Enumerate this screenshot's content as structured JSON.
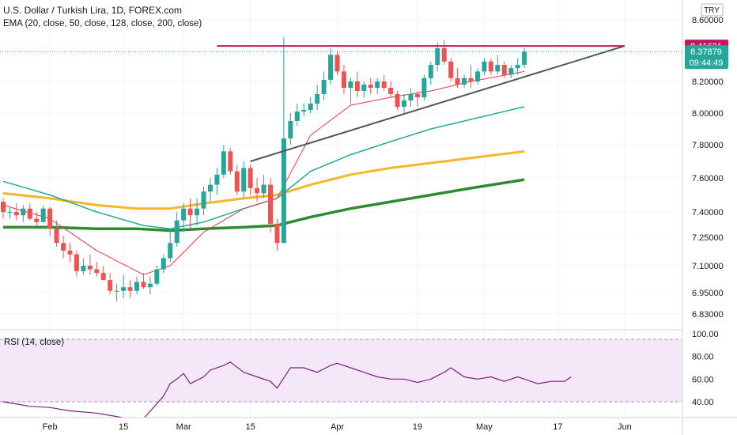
{
  "header": {
    "title": "U.S. Dollar / Turkish Lira, 1D, FOREX.com",
    "indicator": "EMA (20, close, 50, close, 128, close, 200, close)",
    "currency": "TRY"
  },
  "price_badges": {
    "resistance": "8.41621",
    "last": "8.37879",
    "countdown": "09:44:49"
  },
  "rsi_label": "RSI (14, close)",
  "colors": {
    "up": "#26a69a",
    "down": "#ef5350",
    "ema20": "#f23645",
    "ema50": "#22ab94",
    "ema128": "#f7b52c",
    "ema200": "#2e8b2e",
    "trend": "#555555",
    "resistance": "#c2185b",
    "rsi": "#7e1e7e",
    "rsi_band": "#f3e7f8",
    "last_badge": "#26a69a",
    "res_badge": "#c2185b"
  },
  "chart_data": [
    {
      "type": "candlestick",
      "title": "U.S. Dollar / Turkish Lira, 1D, FOREX.com",
      "y_ticks": [
        "8.60000",
        "8.40000",
        "8.20000",
        "8.00000",
        "7.80000",
        "7.60000",
        "7.40000",
        "7.25000",
        "7.10000",
        "6.95000",
        "6.83000"
      ],
      "y_tick_values": [
        8.6,
        8.4,
        8.2,
        8.0,
        7.8,
        7.6,
        7.4,
        7.25,
        7.1,
        6.95,
        6.83
      ],
      "x_ticks": [
        {
          "label": "Feb",
          "idx": 7
        },
        {
          "label": "15",
          "idx": 18
        },
        {
          "label": "Mar",
          "idx": 27
        },
        {
          "label": "15",
          "idx": 37
        },
        {
          "label": "Apr",
          "idx": 50
        },
        {
          "label": "19",
          "idx": 62
        },
        {
          "label": "May",
          "idx": 72
        },
        {
          "label": "17",
          "idx": 83
        },
        {
          "label": "Jun",
          "idx": 93
        }
      ],
      "candles": [
        [
          7.46,
          7.48,
          7.36,
          7.4
        ],
        [
          7.4,
          7.43,
          7.36,
          7.4
        ],
        [
          7.4,
          7.45,
          7.35,
          7.38
        ],
        [
          7.38,
          7.44,
          7.34,
          7.42
        ],
        [
          7.42,
          7.45,
          7.35,
          7.36
        ],
        [
          7.36,
          7.4,
          7.32,
          7.34
        ],
        [
          7.34,
          7.44,
          7.34,
          7.42
        ],
        [
          7.42,
          7.43,
          7.26,
          7.3
        ],
        [
          7.3,
          7.35,
          7.2,
          7.22
        ],
        [
          7.22,
          7.26,
          7.14,
          7.18
        ],
        [
          7.18,
          7.22,
          7.12,
          7.16
        ],
        [
          7.16,
          7.18,
          7.04,
          7.07
        ],
        [
          7.07,
          7.14,
          7.05,
          7.1
        ],
        [
          7.1,
          7.16,
          7.05,
          7.08
        ],
        [
          7.08,
          7.12,
          7.04,
          7.06
        ],
        [
          7.06,
          7.1,
          7.02,
          7.02
        ],
        [
          7.02,
          7.06,
          6.94,
          6.96
        ],
        [
          6.96,
          7.0,
          6.9,
          6.96
        ],
        [
          6.96,
          7.05,
          6.92,
          6.98
        ],
        [
          6.98,
          7.02,
          6.92,
          6.96
        ],
        [
          6.96,
          7.04,
          6.94,
          7.01
        ],
        [
          7.01,
          7.06,
          6.97,
          6.98
        ],
        [
          6.98,
          7.04,
          6.94,
          7.0
        ],
        [
          7.0,
          7.1,
          6.99,
          7.08
        ],
        [
          7.08,
          7.16,
          7.06,
          7.14
        ],
        [
          7.14,
          7.3,
          7.12,
          7.22
        ],
        [
          7.22,
          7.4,
          7.2,
          7.35
        ],
        [
          7.35,
          7.45,
          7.28,
          7.42
        ],
        [
          7.42,
          7.48,
          7.3,
          7.38
        ],
        [
          7.38,
          7.48,
          7.32,
          7.42
        ],
        [
          7.42,
          7.55,
          7.38,
          7.52
        ],
        [
          7.52,
          7.6,
          7.46,
          7.56
        ],
        [
          7.56,
          7.66,
          7.5,
          7.62
        ],
        [
          7.62,
          7.8,
          7.6,
          7.76
        ],
        [
          7.76,
          7.78,
          7.62,
          7.64
        ],
        [
          7.64,
          7.68,
          7.5,
          7.52
        ],
        [
          7.52,
          7.7,
          7.48,
          7.66
        ],
        [
          7.66,
          7.68,
          7.5,
          7.54
        ],
        [
          7.54,
          7.6,
          7.46,
          7.51
        ],
        [
          7.51,
          7.62,
          7.48,
          7.56
        ],
        [
          7.56,
          7.6,
          7.28,
          7.33
        ],
        [
          7.33,
          7.36,
          7.18,
          7.22
        ],
        [
          7.22,
          8.48,
          7.22,
          7.84
        ],
        [
          7.84,
          8.0,
          7.8,
          7.95
        ],
        [
          7.95,
          8.06,
          7.92,
          8.01
        ],
        [
          8.01,
          8.06,
          7.98,
          8.02
        ],
        [
          8.02,
          8.1,
          8.0,
          8.06
        ],
        [
          8.06,
          8.18,
          8.02,
          8.12
        ],
        [
          8.12,
          8.26,
          8.08,
          8.21
        ],
        [
          8.21,
          8.4,
          8.18,
          8.36
        ],
        [
          8.36,
          8.38,
          8.24,
          8.26
        ],
        [
          8.26,
          8.3,
          8.12,
          8.16
        ],
        [
          8.16,
          8.22,
          8.06,
          8.2
        ],
        [
          8.2,
          8.26,
          8.1,
          8.14
        ],
        [
          8.14,
          8.2,
          8.1,
          8.18
        ],
        [
          8.18,
          8.22,
          8.12,
          8.16
        ],
        [
          8.16,
          8.22,
          8.12,
          8.2
        ],
        [
          8.2,
          8.24,
          8.14,
          8.16
        ],
        [
          8.16,
          8.2,
          8.1,
          8.12
        ],
        [
          8.12,
          8.14,
          8.02,
          8.04
        ],
        [
          8.04,
          8.12,
          8.0,
          8.08
        ],
        [
          8.08,
          8.16,
          8.04,
          8.12
        ],
        [
          8.12,
          8.14,
          8.04,
          8.1
        ],
        [
          8.1,
          8.24,
          8.08,
          8.22
        ],
        [
          8.22,
          8.32,
          8.18,
          8.3
        ],
        [
          8.3,
          8.44,
          8.26,
          8.4
        ],
        [
          8.4,
          8.46,
          8.3,
          8.32
        ],
        [
          8.32,
          8.34,
          8.2,
          8.22
        ],
        [
          8.22,
          8.28,
          8.16,
          8.18
        ],
        [
          8.18,
          8.24,
          8.16,
          8.22
        ],
        [
          8.22,
          8.3,
          8.16,
          8.2
        ],
        [
          8.2,
          8.28,
          8.18,
          8.26
        ],
        [
          8.26,
          8.34,
          8.24,
          8.32
        ],
        [
          8.32,
          8.34,
          8.24,
          8.26
        ],
        [
          8.26,
          8.36,
          8.24,
          8.3
        ],
        [
          8.3,
          8.32,
          8.22,
          8.24
        ],
        [
          8.24,
          8.3,
          8.22,
          8.28
        ],
        [
          8.28,
          8.34,
          8.24,
          8.3
        ],
        [
          8.3,
          8.4,
          8.28,
          8.38
        ]
      ],
      "ema20": [
        [
          0,
          7.44
        ],
        [
          7,
          7.36
        ],
        [
          14,
          7.18
        ],
        [
          21,
          7.05
        ],
        [
          25,
          7.1
        ],
        [
          30,
          7.28
        ],
        [
          36,
          7.42
        ],
        [
          41,
          7.48
        ],
        [
          46,
          7.86
        ],
        [
          52,
          8.05
        ],
        [
          58,
          8.1
        ],
        [
          64,
          8.14
        ],
        [
          70,
          8.2
        ],
        [
          78,
          8.26
        ]
      ],
      "ema50": [
        [
          0,
          7.58
        ],
        [
          7,
          7.5
        ],
        [
          14,
          7.4
        ],
        [
          21,
          7.32
        ],
        [
          25,
          7.3
        ],
        [
          30,
          7.34
        ],
        [
          36,
          7.42
        ],
        [
          41,
          7.48
        ],
        [
          46,
          7.64
        ],
        [
          52,
          7.74
        ],
        [
          58,
          7.82
        ],
        [
          64,
          7.9
        ],
        [
          70,
          7.96
        ],
        [
          78,
          8.04
        ]
      ],
      "ema128": [
        [
          0,
          7.51
        ],
        [
          7,
          7.48
        ],
        [
          14,
          7.44
        ],
        [
          20,
          7.42
        ],
        [
          25,
          7.42
        ],
        [
          30,
          7.45
        ],
        [
          36,
          7.48
        ],
        [
          41,
          7.5
        ],
        [
          46,
          7.56
        ],
        [
          52,
          7.62
        ],
        [
          58,
          7.66
        ],
        [
          64,
          7.69
        ],
        [
          70,
          7.72
        ],
        [
          78,
          7.76
        ]
      ],
      "ema200": [
        [
          0,
          7.31
        ],
        [
          7,
          7.31
        ],
        [
          14,
          7.3
        ],
        [
          20,
          7.3
        ],
        [
          25,
          7.29
        ],
        [
          30,
          7.3
        ],
        [
          36,
          7.31
        ],
        [
          41,
          7.32
        ],
        [
          46,
          7.37
        ],
        [
          52,
          7.42
        ],
        [
          58,
          7.46
        ],
        [
          64,
          7.5
        ],
        [
          70,
          7.54
        ],
        [
          78,
          7.59
        ]
      ],
      "trendline": [
        [
          37,
          7.7
        ],
        [
          93,
          8.41621
        ]
      ],
      "resistance": {
        "from_idx": 32,
        "to_idx": 93,
        "value": 8.41621
      }
    },
    {
      "type": "line",
      "title": "RSI (14, close)",
      "y_ticks": [
        "100.00",
        "80.00",
        "60.00",
        "40.00"
      ],
      "y_tick_values": [
        100,
        80,
        60,
        40
      ],
      "band": [
        40,
        95
      ],
      "series": [
        {
          "values": [
            [
              0,
              40
            ],
            [
              2,
              38
            ],
            [
              4,
              36
            ],
            [
              7,
              35
            ],
            [
              10,
              32
            ],
            [
              14,
              30
            ],
            [
              18,
              26
            ],
            [
              21,
              25
            ],
            [
              24,
              45
            ],
            [
              25,
              56
            ],
            [
              26,
              60
            ],
            [
              27,
              65
            ],
            [
              28,
              56
            ],
            [
              30,
              62
            ],
            [
              31,
              68
            ],
            [
              33,
              72
            ],
            [
              34,
              75
            ],
            [
              36,
              66
            ],
            [
              38,
              62
            ],
            [
              40,
              58
            ],
            [
              41,
              52
            ],
            [
              43,
              70
            ],
            [
              45,
              70
            ],
            [
              47,
              66
            ],
            [
              49,
              72
            ],
            [
              50,
              74
            ],
            [
              52,
              70
            ],
            [
              54,
              66
            ],
            [
              56,
              62
            ],
            [
              58,
              60
            ],
            [
              60,
              60
            ],
            [
              62,
              57
            ],
            [
              64,
              60
            ],
            [
              66,
              66
            ],
            [
              67,
              70
            ],
            [
              69,
              62
            ],
            [
              71,
              60
            ],
            [
              73,
              62
            ],
            [
              75,
              58
            ],
            [
              77,
              62
            ],
            [
              78,
              60
            ],
            [
              80,
              56
            ],
            [
              82,
              58
            ],
            [
              84,
              58
            ],
            [
              85,
              62
            ]
          ]
        }
      ]
    }
  ]
}
